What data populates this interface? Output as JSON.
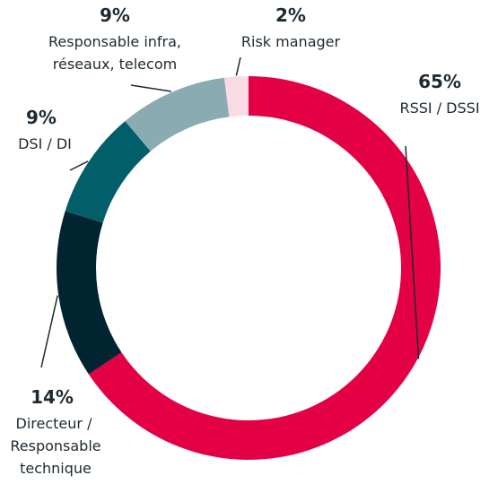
{
  "chart_data": {
    "type": "pie",
    "variant": "donut",
    "slices": [
      {
        "name": "RSSI / DSSI",
        "label_lines": [
          "RSSI / DSSI"
        ],
        "value": 65,
        "value_label": "65%",
        "color": "#e30045"
      },
      {
        "name": "Directeur / Responsable technique",
        "label_lines": [
          "Directeur /",
          "Responsable",
          "technique"
        ],
        "value": 14,
        "value_label": "14%",
        "color": "#022431"
      },
      {
        "name": "DSI / DI",
        "label_lines": [
          "DSI / DI"
        ],
        "value": 9,
        "value_label": "9%",
        "color": "#025e68"
      },
      {
        "name": "Responsable infra, réseaux, telecom",
        "label_lines": [
          "Responsable infra,",
          "réseaux, telecom"
        ],
        "value": 9,
        "value_label": "9%",
        "color": "#8aabb1"
      },
      {
        "name": "Risk manager",
        "label_lines": [
          "Risk manager"
        ],
        "value": 2,
        "value_label": "2%",
        "color": "#f9dbe3"
      }
    ],
    "start_angle_deg": 0,
    "direction": "clockwise",
    "leader_line_color": "#1e2a32"
  }
}
